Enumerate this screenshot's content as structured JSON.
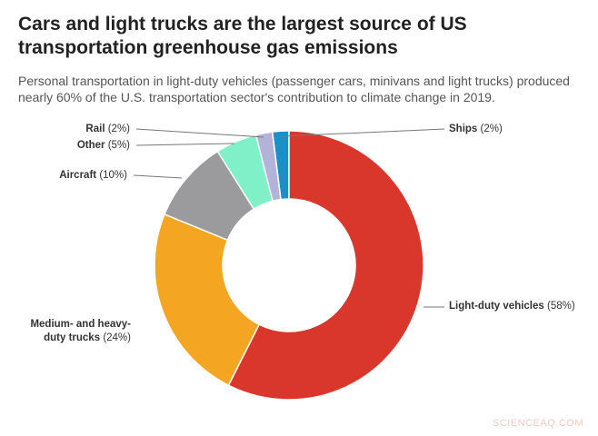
{
  "chart_data": {
    "type": "donut",
    "title": "Cars and light trucks are the largest source of US transportation greenhouse gas emissions",
    "subtitle": "Personal transportation in light-duty vehicles (passenger cars, minivans and light trucks) produced nearly 60% of the U.S. transportation sector's contribution to climate change in 2019.",
    "categories": [
      "Ships",
      "Light-duty vehicles",
      "Medium- and heavy-duty trucks",
      "Aircraft",
      "Other",
      "Rail"
    ],
    "values": [
      2,
      58,
      24,
      10,
      5,
      2
    ],
    "value_labels": [
      "(2%)",
      "(58%)",
      "(24%)",
      "(10%)",
      "(5%)",
      "(2%)"
    ],
    "colors": [
      "#1b8fc6",
      "#d9372b",
      "#f4a623",
      "#9b9b9e",
      "#7ff0c8",
      "#b3b3d9"
    ],
    "watermark": "SCIENCEAQ.COM"
  }
}
